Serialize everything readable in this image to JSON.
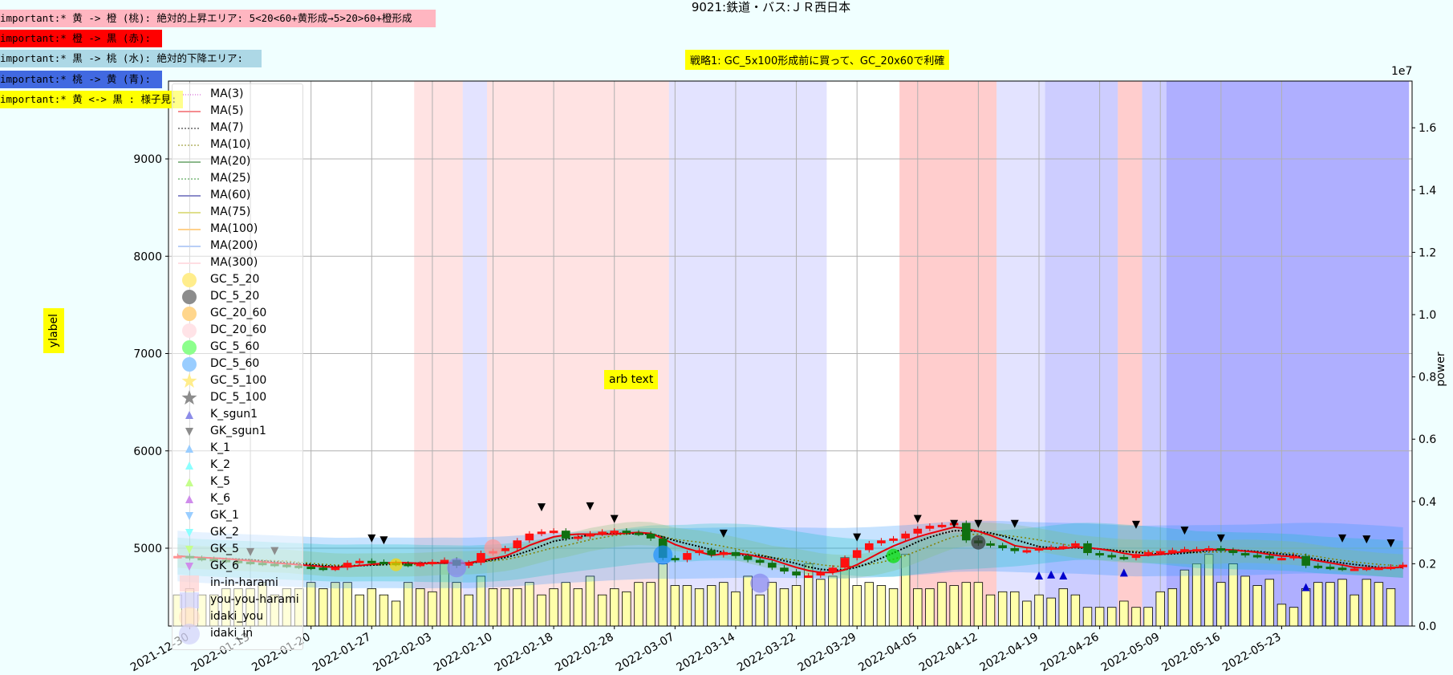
{
  "title": "9021:鉄道・バス:ＪＲ西日本",
  "notes": [
    {
      "text": "important:* 黄 -> 橙 (桃): 絶対的上昇エリア: 5<20<60+黄形成→5>20>60+橙形成",
      "bg": "#ffb6c1"
    },
    {
      "text": "important:* 橙 -> 黒 (赤):",
      "bg": "#ff0000"
    },
    {
      "text": "important:* 黒 -> 桃 (水): 絶対的下降エリア:",
      "bg": "#add8e6"
    },
    {
      "text": "important:* 桃 -> 黄 (青):",
      "bg": "#4169e1"
    },
    {
      "text": "important:* 黄 <-> 黒 : 様子見:",
      "bg": "#ffff00"
    }
  ],
  "strategy": "戦略1: GC_5x100形成前に買って、GC_20x60で利確",
  "arb_text": "arb text",
  "ylabel": "ylabel",
  "power_label": "power",
  "exponent_label": "1e7",
  "legend": [
    {
      "label": "MA(3)",
      "kind": "line",
      "color": "#cc33cc",
      "dash": "1,2"
    },
    {
      "label": "MA(5)",
      "kind": "line",
      "color": "#e8000b",
      "dash": ""
    },
    {
      "label": "MA(7)",
      "kind": "line",
      "color": "#000000",
      "dash": "2,2"
    },
    {
      "label": "MA(10)",
      "kind": "line",
      "color": "#808000",
      "dash": "2,2"
    },
    {
      "label": "MA(20)",
      "kind": "line",
      "color": "#006400",
      "dash": ""
    },
    {
      "label": "MA(25)",
      "kind": "line",
      "color": "#228b22",
      "dash": "2,2"
    },
    {
      "label": "MA(60)",
      "kind": "line",
      "color": "#00008b",
      "dash": ""
    },
    {
      "label": "MA(75)",
      "kind": "line",
      "color": "#b8b800",
      "dash": ""
    },
    {
      "label": "MA(100)",
      "kind": "line",
      "color": "#ff9900",
      "dash": ""
    },
    {
      "label": "MA(200)",
      "kind": "line",
      "color": "#6495ed",
      "dash": ""
    },
    {
      "label": "MA(300)",
      "kind": "line",
      "color": "#ffb6c1",
      "dash": ""
    },
    {
      "label": "GC_5_20",
      "kind": "circle",
      "color": "#ffd700"
    },
    {
      "label": "DC_5_20",
      "kind": "circle",
      "color": "#000000"
    },
    {
      "label": "GC_20_60",
      "kind": "circle",
      "color": "#ffa500"
    },
    {
      "label": "DC_20_60",
      "kind": "circle",
      "color": "#ffc0cb"
    },
    {
      "label": "GC_5_60",
      "kind": "circle",
      "color": "#00ff00"
    },
    {
      "label": "DC_5_60",
      "kind": "circle",
      "color": "#1e90ff"
    },
    {
      "label": "GC_5_100",
      "kind": "star",
      "color": "#ffd700"
    },
    {
      "label": "DC_5_100",
      "kind": "star",
      "color": "#000000"
    },
    {
      "label": "K_sgun1",
      "kind": "tri-up",
      "color": "#0000cd"
    },
    {
      "label": "GK_sgun1",
      "kind": "tri-down",
      "color": "#000000"
    },
    {
      "label": "K_1",
      "kind": "tri-up",
      "color": "#1e90ff"
    },
    {
      "label": "K_2",
      "kind": "tri-up",
      "color": "#00ffff"
    },
    {
      "label": "K_5",
      "kind": "tri-up",
      "color": "#7cfc00"
    },
    {
      "label": "K_6",
      "kind": "tri-up",
      "color": "#9400d3"
    },
    {
      "label": "GK_1",
      "kind": "tri-down",
      "color": "#1e90ff"
    },
    {
      "label": "GK_2",
      "kind": "tri-down",
      "color": "#00ffff"
    },
    {
      "label": "GK_5",
      "kind": "tri-down",
      "color": "#7cfc00"
    },
    {
      "label": "GK_6",
      "kind": "tri-down",
      "color": "#9400d3"
    },
    {
      "label": "in-in-harami",
      "kind": "square",
      "color": "#ff9999"
    },
    {
      "label": "you-you-harami",
      "kind": "square",
      "color": "#9999ff"
    },
    {
      "label": "idaki_you",
      "kind": "bigcircle",
      "color": "#ffb080"
    },
    {
      "label": "idaki_in",
      "kind": "bigcircle",
      "color": "#8888ee"
    }
  ],
  "chart_data": {
    "type": "candlestick",
    "title": "9021:鉄道・バス:ＪＲ西日本",
    "ylabel": "ylabel",
    "y2label": "power",
    "ylim": [
      4200,
      9800
    ],
    "y2lim": [
      0,
      1.75
    ],
    "y2_exponent": "1e7",
    "yticks": [
      5000,
      6000,
      7000,
      8000,
      9000
    ],
    "y2ticks": [
      0.0,
      0.2,
      0.4,
      0.6,
      0.8,
      1.0,
      1.2,
      1.4,
      1.6
    ],
    "xticks": [
      {
        "i": 1,
        "label": "2021-12-30"
      },
      {
        "i": 6,
        "label": "2022-01-13"
      },
      {
        "i": 11,
        "label": "2022-01-20"
      },
      {
        "i": 16,
        "label": "2022-01-27"
      },
      {
        "i": 21,
        "label": "2022-02-03"
      },
      {
        "i": 26,
        "label": "2022-02-10"
      },
      {
        "i": 31,
        "label": "2022-02-18"
      },
      {
        "i": 36,
        "label": "2022-02-28"
      },
      {
        "i": 41,
        "label": "2022-03-07"
      },
      {
        "i": 46,
        "label": "2022-03-14"
      },
      {
        "i": 51,
        "label": "2022-03-22"
      },
      {
        "i": 56,
        "label": "2022-03-29"
      },
      {
        "i": 61,
        "label": "2022-04-05"
      },
      {
        "i": 66,
        "label": "2022-04-12"
      },
      {
        "i": 71,
        "label": "2022-04-19"
      },
      {
        "i": 76,
        "label": "2022-04-26"
      },
      {
        "i": 81,
        "label": "2022-05-09"
      },
      {
        "i": 86,
        "label": "2022-05-16"
      },
      {
        "i": 91,
        "label": "2022-05-23"
      }
    ],
    "bands": [
      {
        "from": 19.5,
        "to": 23.5,
        "color": "#ffc0c0",
        "alpha": 0.45
      },
      {
        "from": 23.5,
        "to": 25.5,
        "color": "#c0c0ff",
        "alpha": 0.45
      },
      {
        "from": 25.5,
        "to": 40.5,
        "color": "#ffc0c0",
        "alpha": 0.45
      },
      {
        "from": 40.5,
        "to": 53.5,
        "color": "#c0c0ff",
        "alpha": 0.45
      },
      {
        "from": 59.5,
        "to": 67.5,
        "color": "#ff9090",
        "alpha": 0.45
      },
      {
        "from": 67.5,
        "to": 71.5,
        "color": "#c0c0ff",
        "alpha": 0.45
      },
      {
        "from": 71.5,
        "to": 77.5,
        "color": "#9090ff",
        "alpha": 0.45
      },
      {
        "from": 77.5,
        "to": 79.5,
        "color": "#ff9090",
        "alpha": 0.45
      },
      {
        "from": 79.5,
        "to": 81.5,
        "color": "#9090ff",
        "alpha": 0.45
      },
      {
        "from": 81.5,
        "to": 101.5,
        "color": "#6060ff",
        "alpha": 0.5
      }
    ],
    "close": [
      4920,
      4900,
      4890,
      4880,
      4870,
      4860,
      4850,
      4840,
      4830,
      4820,
      4810,
      4800,
      4790,
      4800,
      4850,
      4870,
      4860,
      4850,
      4840,
      4830,
      4840,
      4860,
      4880,
      4820,
      4850,
      4950,
      4970,
      5000,
      5080,
      5150,
      5170,
      5180,
      5100,
      5120,
      5150,
      5170,
      5180,
      5160,
      5150,
      5100,
      4900,
      4880,
      4950,
      4980,
      4930,
      4960,
      4920,
      4880,
      4850,
      4800,
      4760,
      4720,
      4720,
      4750,
      4800,
      4900,
      4980,
      5050,
      5080,
      5100,
      5150,
      5200,
      5230,
      5240,
      5260,
      5080,
      5050,
      5030,
      5000,
      4970,
      4980,
      5000,
      5010,
      5020,
      5050,
      4950,
      4930,
      4910,
      4900,
      4940,
      4960,
      4970,
      4980,
      4990,
      4990,
      5000,
      4980,
      4950,
      4930,
      4920,
      4900,
      4900,
      4920,
      4820,
      4810,
      4800,
      4790,
      4790,
      4800,
      4800,
      4810,
      4830
    ]
  },
  "volume": [
    0.1,
    0.12,
    0.1,
    0.1,
    0.12,
    0.12,
    0.12,
    0.14,
    0.1,
    0.12,
    0.12,
    0.14,
    0.12,
    0.14,
    0.14,
    0.1,
    0.12,
    0.1,
    0.08,
    0.14,
    0.12,
    0.11,
    0.2,
    0.14,
    0.1,
    0.16,
    0.12,
    0.12,
    0.12,
    0.14,
    0.1,
    0.12,
    0.14,
    0.12,
    0.16,
    0.1,
    0.12,
    0.11,
    0.14,
    0.14,
    0.2,
    0.13,
    0.13,
    0.12,
    0.13,
    0.14,
    0.11,
    0.16,
    0.1,
    0.14,
    0.12,
    0.13,
    0.2,
    0.15,
    0.16,
    0.22,
    0.13,
    0.14,
    0.13,
    0.12,
    0.23,
    0.12,
    0.12,
    0.14,
    0.13,
    0.14,
    0.14,
    0.1,
    0.11,
    0.11,
    0.08,
    0.1,
    0.09,
    0.12,
    0.1,
    0.06,
    0.06,
    0.06,
    0.08,
    0.06,
    0.06,
    0.11,
    0.12,
    0.18,
    0.2,
    0.23,
    0.14,
    0.2,
    0.16,
    0.13,
    0.15,
    0.07,
    0.06,
    0.12,
    0.14,
    0.14,
    0.15,
    0.1,
    0.15,
    0.14,
    0.12
  ]
}
